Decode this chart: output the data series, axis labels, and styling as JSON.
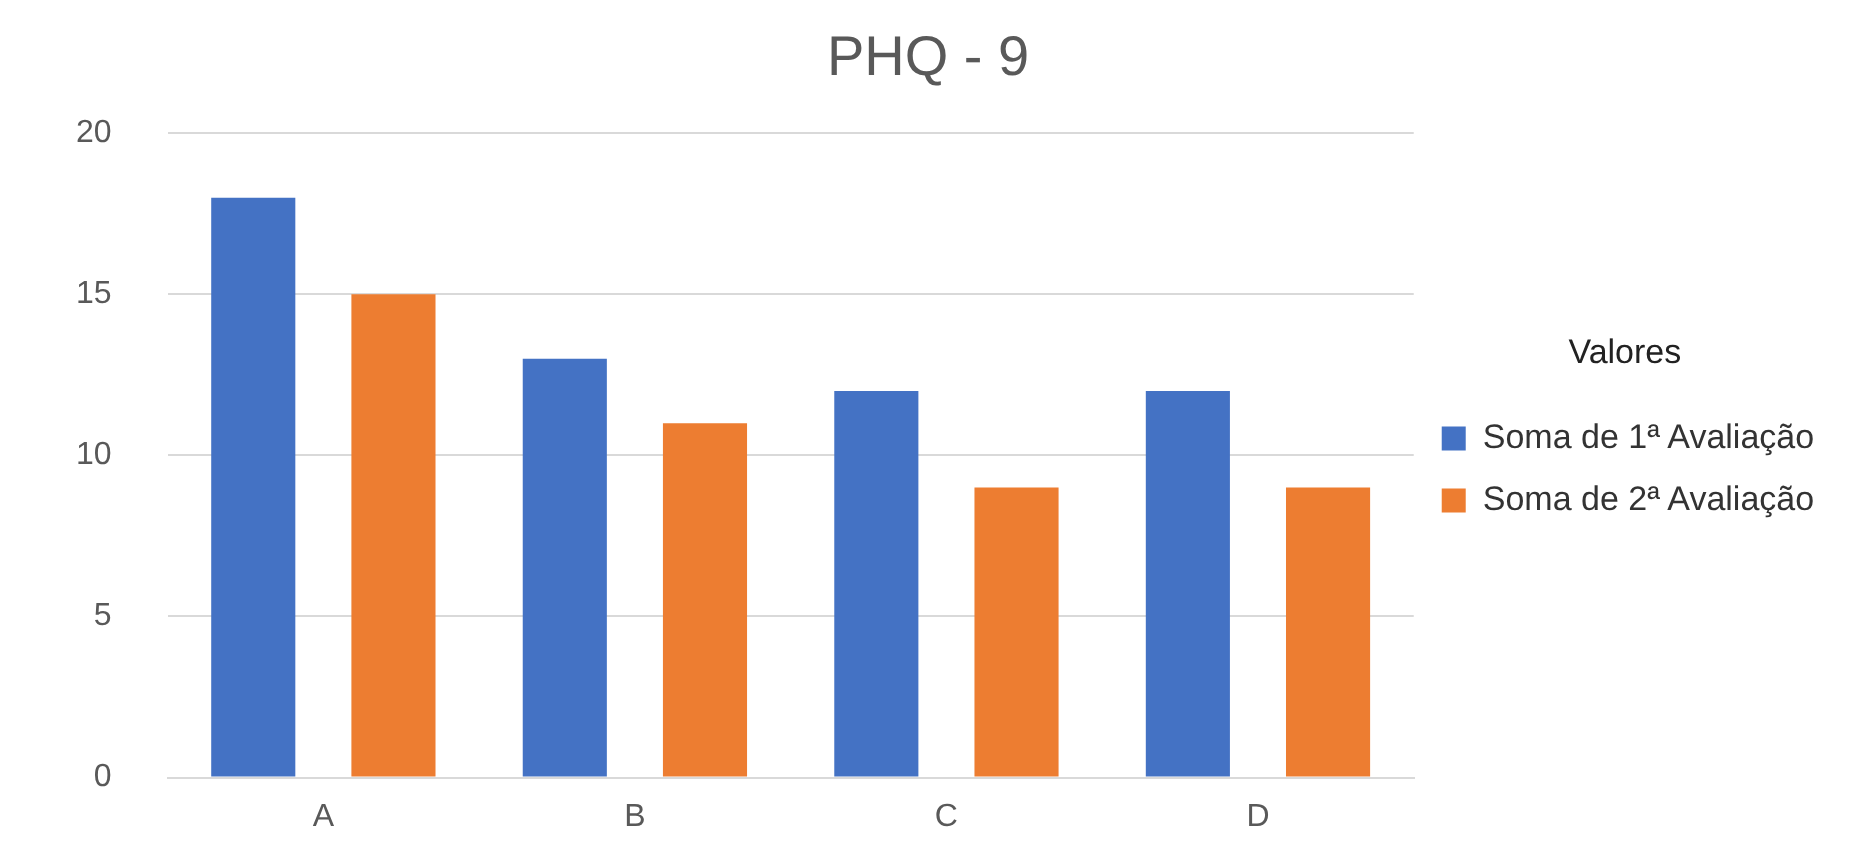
{
  "chart_data": {
    "type": "bar",
    "title": "PHQ - 9",
    "legend_title": "Valores",
    "categories": [
      "A",
      "B",
      "C",
      "D"
    ],
    "series": [
      {
        "name": "Soma de 1ª Avaliação",
        "color": "#4472c4",
        "values": [
          18,
          13,
          12,
          12
        ]
      },
      {
        "name": "Soma de 2ª Avaliação",
        "color": "#ed7d31",
        "values": [
          15,
          11,
          9,
          9
        ]
      }
    ],
    "ylim": [
      0,
      20
    ],
    "yticks": [
      0,
      5,
      10,
      15,
      20
    ],
    "grid": "y",
    "legend": "right"
  }
}
